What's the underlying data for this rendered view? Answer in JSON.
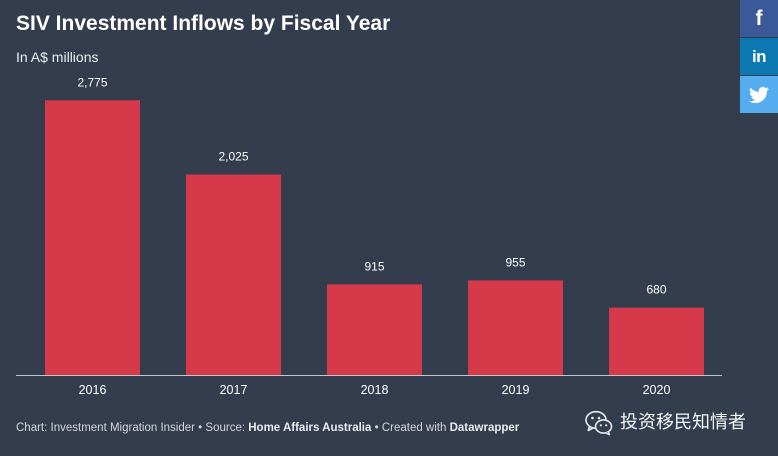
{
  "page": {
    "background": "#343d4e"
  },
  "chart_data": {
    "type": "bar",
    "title": "SIV Investment Inflows by Fiscal Year",
    "subtitle": "In A$ millions",
    "categories": [
      "2016",
      "2017",
      "2018",
      "2019",
      "2020"
    ],
    "values": [
      2775,
      2025,
      915,
      955,
      680
    ],
    "data_labels": [
      "2,775",
      "2,025",
      "915",
      "955",
      "680"
    ],
    "ylim": [
      0,
      3000
    ],
    "grid": false,
    "legend": "none",
    "bar_color": "#d63a4a",
    "axis_color": "#c3c7cd"
  },
  "footer": {
    "credit": "Chart: Investment Migration Insider",
    "separator": "•",
    "source_label": "Source:",
    "source": "Home Affairs Australia",
    "created_label": "Created with",
    "tool": "Datawrapper"
  },
  "share": [
    {
      "icon": "facebook-icon",
      "glyph": "f",
      "color": "#3b5998"
    },
    {
      "icon": "linkedin-icon",
      "glyph": "in",
      "color": "#0b78b2"
    },
    {
      "icon": "twitter-icon",
      "color": "#55acee"
    }
  ],
  "watermark": {
    "icon": "wechat-icon",
    "text": "投资移民知情者"
  }
}
